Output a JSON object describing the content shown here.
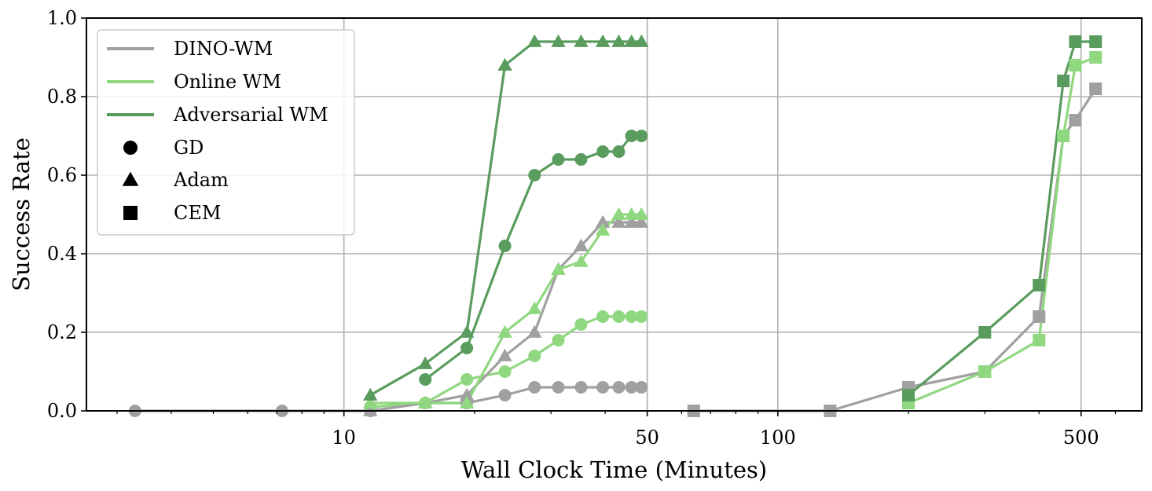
{
  "chart_data": {
    "type": "line",
    "xlabel": "Wall Clock Time (Minutes)",
    "ylabel": "Success Rate",
    "x_scale": "log",
    "xlim": [
      2.55,
      690
    ],
    "ylim": [
      0,
      1.0
    ],
    "x_ticks": [
      {
        "value": 10,
        "label": "10"
      },
      {
        "value": 50,
        "label": "50"
      },
      {
        "value": 100,
        "label": "100"
      },
      {
        "value": 500,
        "label": "500"
      }
    ],
    "y_ticks": [
      {
        "value": 0,
        "label": "0.0"
      },
      {
        "value": 0.2,
        "label": "0.2"
      },
      {
        "value": 0.4,
        "label": "0.4"
      },
      {
        "value": 0.6,
        "label": "0.6"
      },
      {
        "value": 0.8,
        "label": "0.8"
      },
      {
        "value": 1.0,
        "label": "1.0"
      }
    ],
    "grid": true,
    "legend_position": "top-left",
    "legend": {
      "models": [
        {
          "name": "DINO-WM",
          "color": "#a0a0a0"
        },
        {
          "name": "Online WM",
          "color": "#90d880"
        },
        {
          "name": "Adversarial WM",
          "color": "#5a9c5e"
        }
      ],
      "optimizers": [
        {
          "name": "GD",
          "marker": "circle"
        },
        {
          "name": "Adam",
          "marker": "triangle"
        },
        {
          "name": "CEM",
          "marker": "square"
        }
      ]
    },
    "series": [
      {
        "model": "DINO-WM",
        "optimizer": "GD",
        "color": "#a0a0a0",
        "marker": "circle",
        "x": [
          3.3,
          7.2,
          11.5,
          15.4,
          19.2,
          23.5,
          27.5,
          31.2,
          35.2,
          39.5,
          43.0,
          46.0,
          48.5
        ],
        "y": [
          0,
          0,
          0,
          0.02,
          0.02,
          0.04,
          0.06,
          0.06,
          0.06,
          0.06,
          0.06,
          0.06,
          0.06
        ]
      },
      {
        "model": "Online WM",
        "optimizer": "GD",
        "color": "#90d880",
        "marker": "circle",
        "x": [
          11.5,
          15.4,
          19.2,
          23.5,
          27.5,
          31.2,
          35.2,
          39.5,
          43.0,
          46.0,
          48.5
        ],
        "y": [
          0.01,
          0.02,
          0.08,
          0.1,
          0.14,
          0.18,
          0.22,
          0.24,
          0.24,
          0.24,
          0.24
        ]
      },
      {
        "model": "Adversarial WM",
        "optimizer": "GD",
        "color": "#5a9c5e",
        "marker": "circle",
        "x": [
          15.4,
          19.2,
          23.5,
          27.5,
          31.2,
          35.2,
          39.5,
          43.0,
          46.0,
          48.5
        ],
        "y": [
          0.08,
          0.16,
          0.42,
          0.6,
          0.64,
          0.64,
          0.66,
          0.66,
          0.7,
          0.7
        ]
      },
      {
        "model": "DINO-WM",
        "optimizer": "Adam",
        "color": "#a0a0a0",
        "marker": "triangle",
        "x": [
          11.5,
          15.4,
          19.2,
          23.5,
          27.5,
          31.2,
          35.2,
          39.5,
          43.0,
          46.0,
          48.5
        ],
        "y": [
          0,
          0.02,
          0.04,
          0.14,
          0.2,
          0.36,
          0.42,
          0.48,
          0.48,
          0.48,
          0.48
        ]
      },
      {
        "model": "Online WM",
        "optimizer": "Adam",
        "color": "#90d880",
        "marker": "triangle",
        "x": [
          11.5,
          15.4,
          19.2,
          23.5,
          27.5,
          31.2,
          35.2,
          39.5,
          43.0,
          46.0,
          48.5
        ],
        "y": [
          0.02,
          0.02,
          0.02,
          0.2,
          0.26,
          0.36,
          0.38,
          0.46,
          0.5,
          0.5,
          0.5
        ]
      },
      {
        "model": "Adversarial WM",
        "optimizer": "Adam",
        "color": "#5a9c5e",
        "marker": "triangle",
        "x": [
          11.5,
          15.4,
          19.2,
          23.5,
          27.5,
          31.2,
          35.2,
          39.5,
          43.0,
          46.0,
          48.5
        ],
        "y": [
          0.04,
          0.12,
          0.2,
          0.88,
          0.94,
          0.94,
          0.94,
          0.94,
          0.94,
          0.94,
          0.94
        ]
      },
      {
        "model": "DINO-WM",
        "optimizer": "CEM",
        "color": "#a0a0a0",
        "marker": "square",
        "x": [
          64,
          132,
          200,
          300,
          400,
          455,
          485,
          540
        ],
        "y": [
          0,
          0,
          0.06,
          0.1,
          0.24,
          0.7,
          0.74,
          0.82
        ]
      },
      {
        "model": "Online WM",
        "optimizer": "CEM",
        "color": "#90d880",
        "marker": "square",
        "x": [
          200,
          300,
          400,
          455,
          485,
          540
        ],
        "y": [
          0.02,
          0.1,
          0.18,
          0.7,
          0.88,
          0.9
        ]
      },
      {
        "model": "Adversarial WM",
        "optimizer": "CEM",
        "color": "#5a9c5e",
        "marker": "square",
        "x": [
          200,
          300,
          400,
          455,
          485,
          540
        ],
        "y": [
          0.04,
          0.2,
          0.32,
          0.84,
          0.94,
          0.94
        ]
      }
    ]
  }
}
